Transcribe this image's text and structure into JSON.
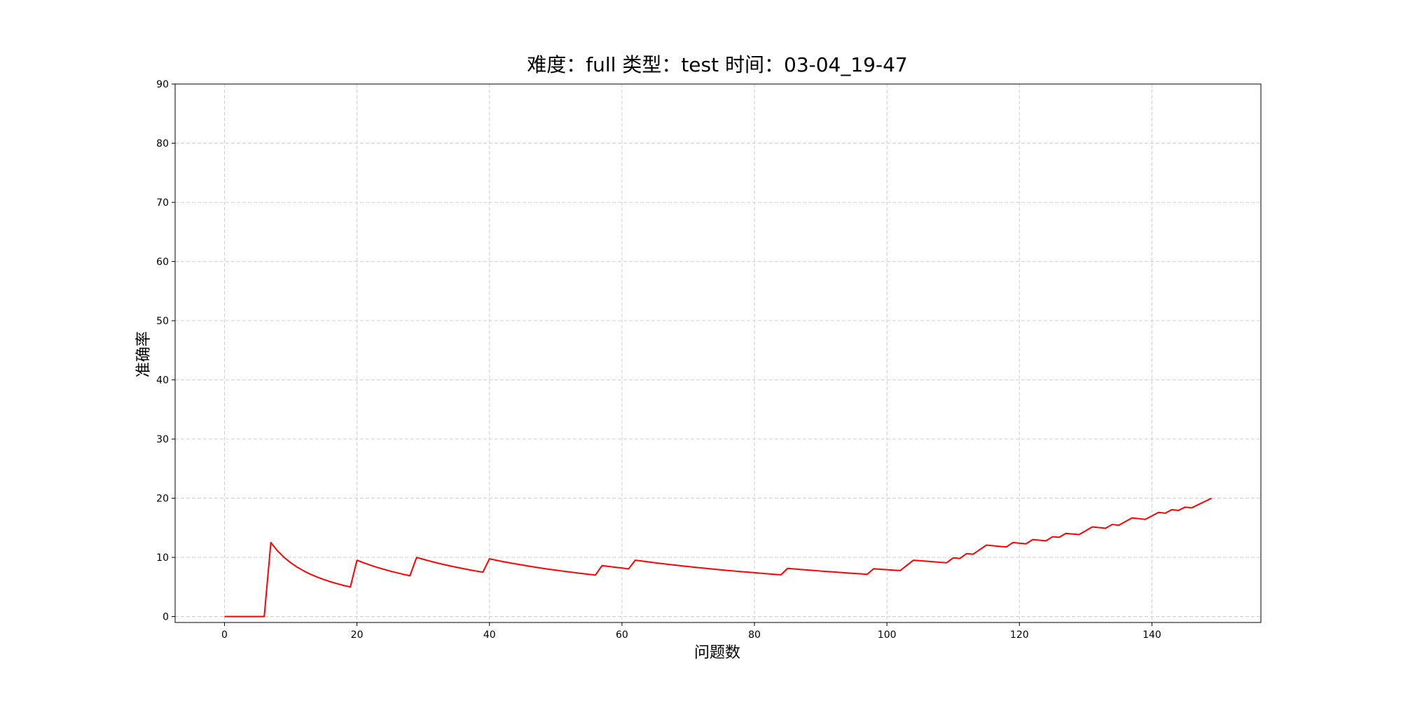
{
  "chart_data": {
    "type": "line",
    "title": "难度：full 类型：test 时间：03-04_19-47",
    "x_label": "问题数",
    "y_label": "准确率",
    "x": [
      0,
      1,
      2,
      3,
      4,
      5,
      6,
      7,
      8,
      9,
      10,
      11,
      12,
      13,
      14,
      15,
      16,
      17,
      18,
      19,
      20,
      21,
      22,
      23,
      24,
      25,
      26,
      27,
      28,
      29,
      30,
      31,
      32,
      33,
      34,
      35,
      36,
      37,
      38,
      39,
      40,
      41,
      42,
      43,
      44,
      45,
      46,
      47,
      48,
      49,
      50,
      51,
      52,
      53,
      54,
      55,
      56,
      57,
      58,
      59,
      60,
      61,
      62,
      63,
      64,
      65,
      66,
      67,
      68,
      69,
      70,
      71,
      72,
      73,
      74,
      75,
      76,
      77,
      78,
      79,
      80,
      81,
      82,
      83,
      84,
      85,
      86,
      87,
      88,
      89,
      90,
      91,
      92,
      93,
      94,
      95,
      96,
      97,
      98,
      99,
      100,
      101,
      102,
      103,
      104,
      105,
      106,
      107,
      108,
      109,
      110,
      111,
      112,
      113,
      114,
      115,
      116,
      117,
      118,
      119,
      120,
      121,
      122,
      123,
      124,
      125,
      126,
      127,
      128,
      129,
      130,
      131,
      132,
      133,
      134,
      135,
      136,
      137,
      138,
      139,
      140,
      141,
      142,
      143,
      144,
      145,
      146,
      147,
      148,
      149
    ],
    "series": [
      {
        "color": "#ff0000",
        "values": [
          0,
          0,
          0,
          0,
          0,
          0,
          0,
          12.5,
          11.11,
          10,
          9.09,
          8.33,
          7.69,
          7.14,
          6.67,
          6.25,
          5.88,
          5.56,
          5.26,
          5,
          9.52,
          9.09,
          8.7,
          8.33,
          8,
          7.69,
          7.41,
          7.14,
          6.9,
          10,
          9.68,
          9.38,
          9.09,
          8.82,
          8.57,
          8.33,
          8.11,
          7.89,
          7.69,
          7.5,
          9.76,
          9.52,
          9.3,
          9.09,
          8.89,
          8.7,
          8.51,
          8.33,
          8.16,
          8,
          7.84,
          7.69,
          7.55,
          7.41,
          7.27,
          7.14,
          7.02,
          8.62,
          8.47,
          8.33,
          8.2,
          8.06,
          9.52,
          9.38,
          9.23,
          9.09,
          8.96,
          8.82,
          8.7,
          8.57,
          8.45,
          8.33,
          8.22,
          8.11,
          8,
          7.89,
          7.79,
          7.69,
          7.59,
          7.5,
          7.41,
          7.32,
          7.23,
          7.14,
          7.06,
          8.14,
          8.05,
          7.95,
          7.87,
          7.78,
          7.69,
          7.61,
          7.53,
          7.45,
          7.37,
          7.29,
          7.22,
          7.14,
          8.08,
          8,
          7.92,
          7.84,
          7.77,
          8.65,
          9.52,
          9.43,
          9.35,
          9.26,
          9.17,
          9.09,
          9.91,
          9.82,
          10.62,
          10.53,
          11.3,
          12.07,
          11.97,
          11.86,
          11.76,
          12.5,
          12.4,
          12.3,
          13.01,
          12.9,
          12.8,
          13.49,
          13.39,
          14.06,
          13.95,
          13.85,
          14.5,
          15.15,
          15.04,
          14.93,
          15.56,
          15.44,
          16.06,
          16.67,
          16.55,
          16.43,
          17.02,
          17.61,
          17.48,
          18.06,
          17.93,
          18.49,
          18.37,
          18.92,
          19.46,
          20
        ]
      }
    ],
    "xlim": [
      -7.45,
      156.45
    ],
    "xticks": [
      0,
      20,
      40,
      60,
      80,
      100,
      120,
      140
    ],
    "ylim": [
      -1,
      90
    ],
    "yticks": [
      0,
      10,
      20,
      30,
      40,
      50,
      60,
      70,
      80,
      90
    ],
    "grid": true
  }
}
